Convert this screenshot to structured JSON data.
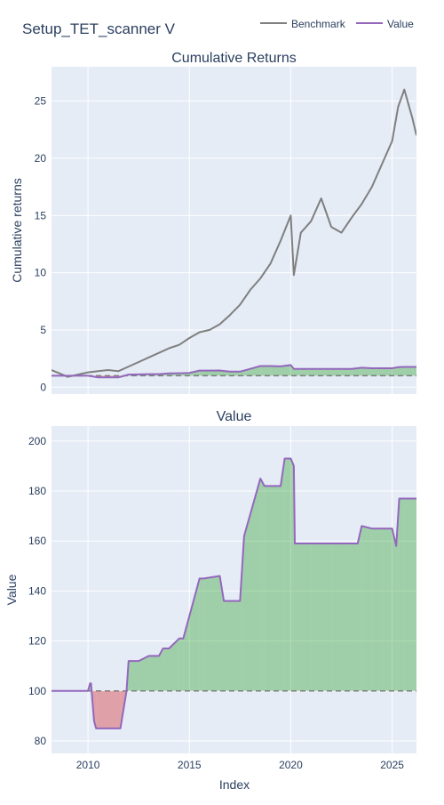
{
  "title": "Setup_TET_scanner V",
  "legend": {
    "placement": "top-right",
    "items": [
      {
        "name": "Benchmark",
        "color": "#7f7f7f"
      },
      {
        "name": "Value",
        "color": "#9467bd"
      }
    ]
  },
  "xaxis": {
    "label": "Index",
    "range": [
      2008.2,
      2026.2
    ],
    "ticks": [
      2010,
      2015,
      2020,
      2025
    ]
  },
  "colors": {
    "plot_bg": "#e5ecf6",
    "grid": "#ffffff",
    "benchmark": "#7f7f7f",
    "value": "#9467bd",
    "gain_fill": "#2ca02c",
    "loss_fill": "#d62728",
    "baseline": "#7f7f7f"
  },
  "chart_data": [
    {
      "type": "line",
      "title": "Cumulative Returns",
      "ylabel": "Cumulative returns",
      "ylim": [
        -0.6,
        28
      ],
      "yticks": [
        0,
        5,
        10,
        15,
        20,
        25
      ],
      "grid": true,
      "baseline": 1,
      "x": [
        2008.2,
        2008.6,
        2009.0,
        2009.5,
        2010.0,
        2010.5,
        2011.0,
        2011.5,
        2012.0,
        2012.5,
        2013.0,
        2013.5,
        2014.0,
        2014.5,
        2015.0,
        2015.5,
        2016.0,
        2016.5,
        2017.0,
        2017.5,
        2018.0,
        2018.5,
        2019.0,
        2019.5,
        2020.0,
        2020.15,
        2020.5,
        2021.0,
        2021.5,
        2022.0,
        2022.5,
        2023.0,
        2023.5,
        2024.0,
        2024.5,
        2025.0,
        2025.3,
        2025.6,
        2026.0,
        2026.2
      ],
      "series": [
        {
          "name": "Benchmark",
          "values": [
            1.5,
            1.2,
            0.9,
            1.1,
            1.3,
            1.4,
            1.5,
            1.4,
            1.8,
            2.2,
            2.6,
            3.0,
            3.4,
            3.7,
            4.3,
            4.8,
            5.0,
            5.5,
            6.3,
            7.2,
            8.5,
            9.5,
            10.8,
            12.8,
            15.0,
            9.8,
            13.5,
            14.5,
            16.5,
            14.0,
            13.5,
            14.8,
            16.0,
            17.5,
            19.5,
            21.5,
            24.5,
            26.0,
            23.5,
            22.0
          ]
        },
        {
          "name": "Value",
          "values": [
            1.0,
            1.0,
            1.0,
            1.0,
            1.0,
            0.85,
            0.85,
            0.85,
            1.1,
            1.12,
            1.14,
            1.14,
            1.2,
            1.22,
            1.25,
            1.45,
            1.45,
            1.46,
            1.36,
            1.36,
            1.6,
            1.85,
            1.85,
            1.82,
            1.93,
            1.6,
            1.59,
            1.59,
            1.59,
            1.59,
            1.59,
            1.59,
            1.7,
            1.65,
            1.65,
            1.65,
            1.75,
            1.77,
            1.77,
            1.77
          ]
        }
      ]
    },
    {
      "type": "area",
      "title": "Value",
      "ylabel": "Value",
      "ylim": [
        75,
        206
      ],
      "yticks": [
        80,
        100,
        120,
        140,
        160,
        180,
        200
      ],
      "grid": true,
      "baseline": 100,
      "x": [
        2008.2,
        2010.0,
        2010.1,
        2010.15,
        2010.3,
        2010.4,
        2010.45,
        2011.6,
        2011.7,
        2011.9,
        2012.0,
        2012.5,
        2013.0,
        2013.5,
        2013.7,
        2014.0,
        2014.5,
        2014.7,
        2015.0,
        2015.5,
        2015.7,
        2016.5,
        2016.7,
        2017.5,
        2017.7,
        2018.5,
        2018.7,
        2019.5,
        2019.7,
        2020.0,
        2020.15,
        2020.2,
        2021.0,
        2022.0,
        2023.0,
        2023.3,
        2023.5,
        2024.0,
        2024.5,
        2025.0,
        2025.2,
        2025.35,
        2025.6,
        2026.2
      ],
      "series": [
        {
          "name": "Value",
          "values": [
            100,
            100,
            103,
            103,
            88,
            85,
            85,
            85,
            90,
            100,
            112,
            112,
            114,
            114,
            117,
            117,
            121,
            121,
            130,
            145,
            145,
            146,
            136,
            136,
            162,
            185,
            182,
            182,
            193,
            193,
            190,
            159,
            159,
            159,
            159,
            159,
            166,
            165,
            165,
            165,
            158,
            177,
            177,
            177
          ]
        }
      ]
    }
  ]
}
